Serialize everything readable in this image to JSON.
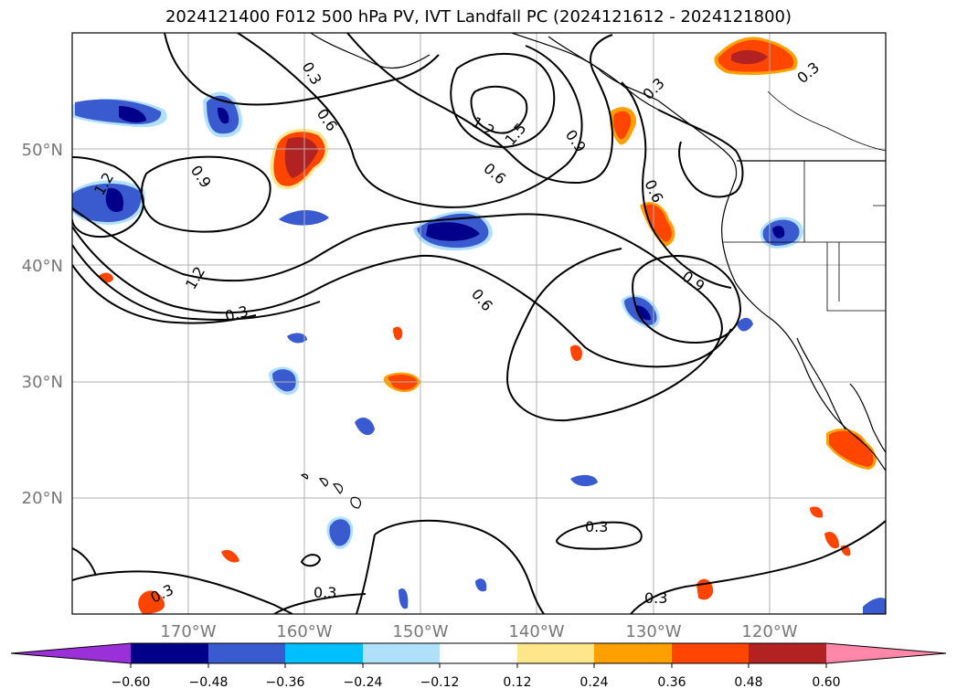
{
  "title": "2024121400 F012 500 hPa PV, IVT Landfall PC (2024121612 - 2024121800)",
  "map": {
    "lat_labels": [
      {
        "lat": 50,
        "text": "50°N"
      },
      {
        "lat": 40,
        "text": "40°N"
      },
      {
        "lat": 30,
        "text": "30°N"
      },
      {
        "lat": 20,
        "text": "20°N"
      }
    ],
    "lon_labels": [
      {
        "lon": -170,
        "text": "170°W"
      },
      {
        "lon": -160,
        "text": "160°W"
      },
      {
        "lon": -150,
        "text": "150°W"
      },
      {
        "lon": -140,
        "text": "140°W"
      },
      {
        "lon": -130,
        "text": "130°W"
      },
      {
        "lon": -120,
        "text": "120°W"
      }
    ],
    "extent": {
      "lon_min": -180,
      "lon_max": -110,
      "lat_min": 10,
      "lat_max": 60
    },
    "contour_labels": [
      "0.3",
      "0.6",
      "0.9",
      "1.2",
      "1.5"
    ],
    "colors": {
      "grid": "#b0b0b0",
      "contour": "#000000",
      "coast": "#000000"
    }
  },
  "colorbar": {
    "ticks": [
      "−0.60",
      "−0.48",
      "−0.36",
      "−0.24",
      "−0.12",
      "0.12",
      "0.24",
      "0.36",
      "0.48",
      "0.60"
    ],
    "bins": [
      {
        "color": "#9b30d9"
      },
      {
        "color": "#00008b"
      },
      {
        "color": "#3a5bd0"
      },
      {
        "color": "#00bfff"
      },
      {
        "color": "#b0e0fa"
      },
      {
        "color": "#ffffff"
      },
      {
        "color": "#ffe68a"
      },
      {
        "color": "#ffa000"
      },
      {
        "color": "#ff4500"
      },
      {
        "color": "#b22222"
      },
      {
        "color": "#ff88aa"
      }
    ]
  }
}
